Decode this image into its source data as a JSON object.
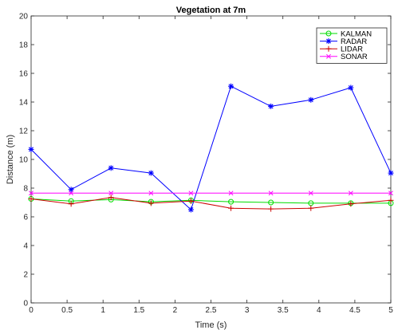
{
  "chart_data": {
    "type": "line",
    "title": "Vegetation at 7m",
    "xlabel": "Time (s)",
    "ylabel": "Distance (m)",
    "xlim": [
      0,
      5
    ],
    "ylim": [
      0,
      20
    ],
    "x_ticks": [
      "0",
      "0.5",
      "1",
      "1.5",
      "2",
      "2.5",
      "3",
      "3.5",
      "4",
      "4.5",
      "5"
    ],
    "y_ticks": [
      "0",
      "2",
      "4",
      "6",
      "8",
      "10",
      "12",
      "14",
      "16",
      "18",
      "20"
    ],
    "grid": false,
    "legend_position": "top-right",
    "series": [
      {
        "name": "KALMAN",
        "color": "#00dd00",
        "marker": "circle",
        "x": [
          0,
          0.556,
          1.111,
          1.667,
          2.222,
          2.778,
          3.333,
          3.889,
          4.444,
          5
        ],
        "y": [
          7.25,
          7.1,
          7.2,
          7.05,
          7.15,
          7.05,
          7.0,
          6.95,
          6.95,
          6.95
        ]
      },
      {
        "name": "RADAR",
        "color": "#0000ff",
        "marker": "asterisk",
        "x": [
          0,
          0.556,
          1.111,
          1.667,
          2.222,
          2.778,
          3.333,
          3.889,
          4.444,
          5
        ],
        "y": [
          10.7,
          7.9,
          9.4,
          9.05,
          6.5,
          15.1,
          13.7,
          14.15,
          15.0,
          9.05
        ]
      },
      {
        "name": "LIDAR",
        "color": "#cc0000",
        "marker": "plus",
        "x": [
          0,
          0.556,
          1.111,
          1.667,
          2.222,
          2.778,
          3.333,
          3.889,
          4.444,
          5
        ],
        "y": [
          7.25,
          6.9,
          7.35,
          6.95,
          7.1,
          6.6,
          6.55,
          6.6,
          6.9,
          7.15
        ]
      },
      {
        "name": "SONAR",
        "color": "#ff00ff",
        "marker": "x",
        "x": [
          0,
          0.556,
          1.111,
          1.667,
          2.222,
          2.778,
          3.333,
          3.889,
          4.444,
          5
        ],
        "y": [
          7.65,
          7.65,
          7.65,
          7.65,
          7.65,
          7.65,
          7.65,
          7.65,
          7.65,
          7.65
        ]
      }
    ]
  }
}
